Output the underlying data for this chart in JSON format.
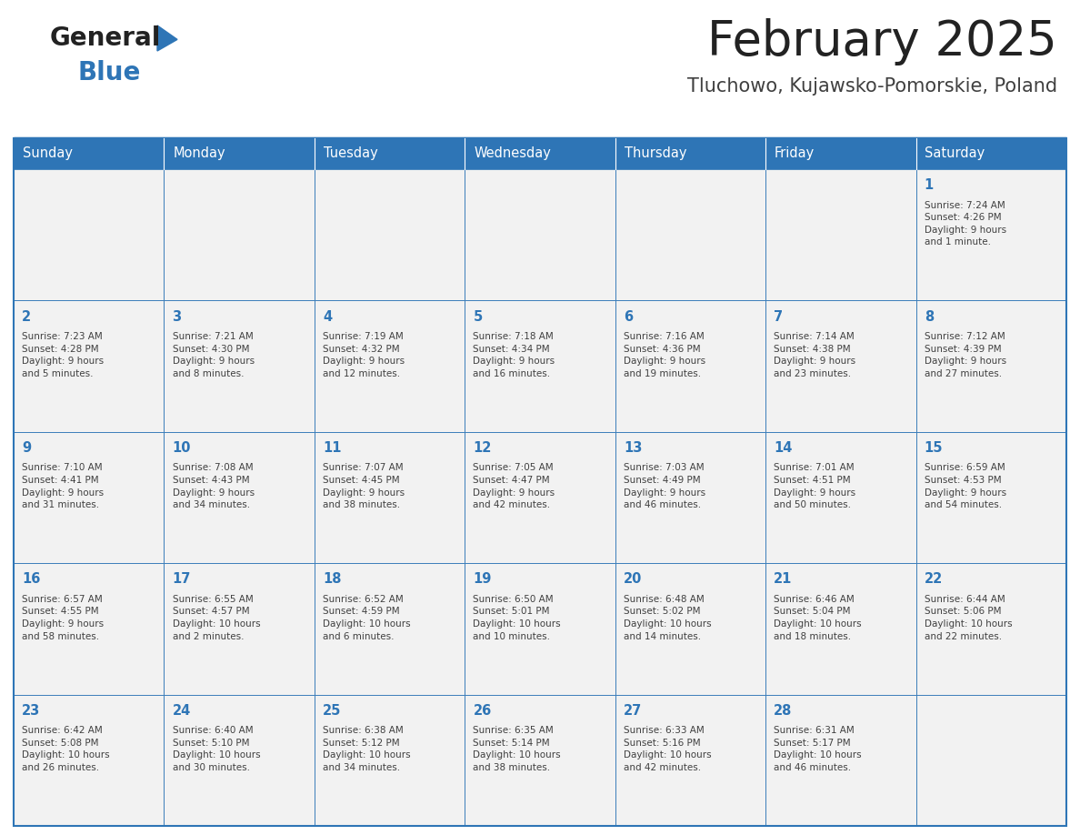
{
  "title": "February 2025",
  "subtitle": "Tluchowo, Kujawsko-Pomorskie, Poland",
  "header_bg": "#2E75B6",
  "header_text": "#FFFFFF",
  "cell_bg": "#F2F2F2",
  "day_headers": [
    "Sunday",
    "Monday",
    "Tuesday",
    "Wednesday",
    "Thursday",
    "Friday",
    "Saturday"
  ],
  "title_color": "#222222",
  "subtitle_color": "#404040",
  "day_num_color": "#2E75B6",
  "cell_text_color": "#404040",
  "border_color": "#2E75B6",
  "logo_general_color": "#222222",
  "logo_blue_color": "#2E75B6",
  "logo_triangle_color": "#2E75B6",
  "weeks": [
    [
      {
        "day": null,
        "info": null
      },
      {
        "day": null,
        "info": null
      },
      {
        "day": null,
        "info": null
      },
      {
        "day": null,
        "info": null
      },
      {
        "day": null,
        "info": null
      },
      {
        "day": null,
        "info": null
      },
      {
        "day": 1,
        "info": "Sunrise: 7:24 AM\nSunset: 4:26 PM\nDaylight: 9 hours\nand 1 minute."
      }
    ],
    [
      {
        "day": 2,
        "info": "Sunrise: 7:23 AM\nSunset: 4:28 PM\nDaylight: 9 hours\nand 5 minutes."
      },
      {
        "day": 3,
        "info": "Sunrise: 7:21 AM\nSunset: 4:30 PM\nDaylight: 9 hours\nand 8 minutes."
      },
      {
        "day": 4,
        "info": "Sunrise: 7:19 AM\nSunset: 4:32 PM\nDaylight: 9 hours\nand 12 minutes."
      },
      {
        "day": 5,
        "info": "Sunrise: 7:18 AM\nSunset: 4:34 PM\nDaylight: 9 hours\nand 16 minutes."
      },
      {
        "day": 6,
        "info": "Sunrise: 7:16 AM\nSunset: 4:36 PM\nDaylight: 9 hours\nand 19 minutes."
      },
      {
        "day": 7,
        "info": "Sunrise: 7:14 AM\nSunset: 4:38 PM\nDaylight: 9 hours\nand 23 minutes."
      },
      {
        "day": 8,
        "info": "Sunrise: 7:12 AM\nSunset: 4:39 PM\nDaylight: 9 hours\nand 27 minutes."
      }
    ],
    [
      {
        "day": 9,
        "info": "Sunrise: 7:10 AM\nSunset: 4:41 PM\nDaylight: 9 hours\nand 31 minutes."
      },
      {
        "day": 10,
        "info": "Sunrise: 7:08 AM\nSunset: 4:43 PM\nDaylight: 9 hours\nand 34 minutes."
      },
      {
        "day": 11,
        "info": "Sunrise: 7:07 AM\nSunset: 4:45 PM\nDaylight: 9 hours\nand 38 minutes."
      },
      {
        "day": 12,
        "info": "Sunrise: 7:05 AM\nSunset: 4:47 PM\nDaylight: 9 hours\nand 42 minutes."
      },
      {
        "day": 13,
        "info": "Sunrise: 7:03 AM\nSunset: 4:49 PM\nDaylight: 9 hours\nand 46 minutes."
      },
      {
        "day": 14,
        "info": "Sunrise: 7:01 AM\nSunset: 4:51 PM\nDaylight: 9 hours\nand 50 minutes."
      },
      {
        "day": 15,
        "info": "Sunrise: 6:59 AM\nSunset: 4:53 PM\nDaylight: 9 hours\nand 54 minutes."
      }
    ],
    [
      {
        "day": 16,
        "info": "Sunrise: 6:57 AM\nSunset: 4:55 PM\nDaylight: 9 hours\nand 58 minutes."
      },
      {
        "day": 17,
        "info": "Sunrise: 6:55 AM\nSunset: 4:57 PM\nDaylight: 10 hours\nand 2 minutes."
      },
      {
        "day": 18,
        "info": "Sunrise: 6:52 AM\nSunset: 4:59 PM\nDaylight: 10 hours\nand 6 minutes."
      },
      {
        "day": 19,
        "info": "Sunrise: 6:50 AM\nSunset: 5:01 PM\nDaylight: 10 hours\nand 10 minutes."
      },
      {
        "day": 20,
        "info": "Sunrise: 6:48 AM\nSunset: 5:02 PM\nDaylight: 10 hours\nand 14 minutes."
      },
      {
        "day": 21,
        "info": "Sunrise: 6:46 AM\nSunset: 5:04 PM\nDaylight: 10 hours\nand 18 minutes."
      },
      {
        "day": 22,
        "info": "Sunrise: 6:44 AM\nSunset: 5:06 PM\nDaylight: 10 hours\nand 22 minutes."
      }
    ],
    [
      {
        "day": 23,
        "info": "Sunrise: 6:42 AM\nSunset: 5:08 PM\nDaylight: 10 hours\nand 26 minutes."
      },
      {
        "day": 24,
        "info": "Sunrise: 6:40 AM\nSunset: 5:10 PM\nDaylight: 10 hours\nand 30 minutes."
      },
      {
        "day": 25,
        "info": "Sunrise: 6:38 AM\nSunset: 5:12 PM\nDaylight: 10 hours\nand 34 minutes."
      },
      {
        "day": 26,
        "info": "Sunrise: 6:35 AM\nSunset: 5:14 PM\nDaylight: 10 hours\nand 38 minutes."
      },
      {
        "day": 27,
        "info": "Sunrise: 6:33 AM\nSunset: 5:16 PM\nDaylight: 10 hours\nand 42 minutes."
      },
      {
        "day": 28,
        "info": "Sunrise: 6:31 AM\nSunset: 5:17 PM\nDaylight: 10 hours\nand 46 minutes."
      },
      {
        "day": null,
        "info": null
      }
    ]
  ]
}
